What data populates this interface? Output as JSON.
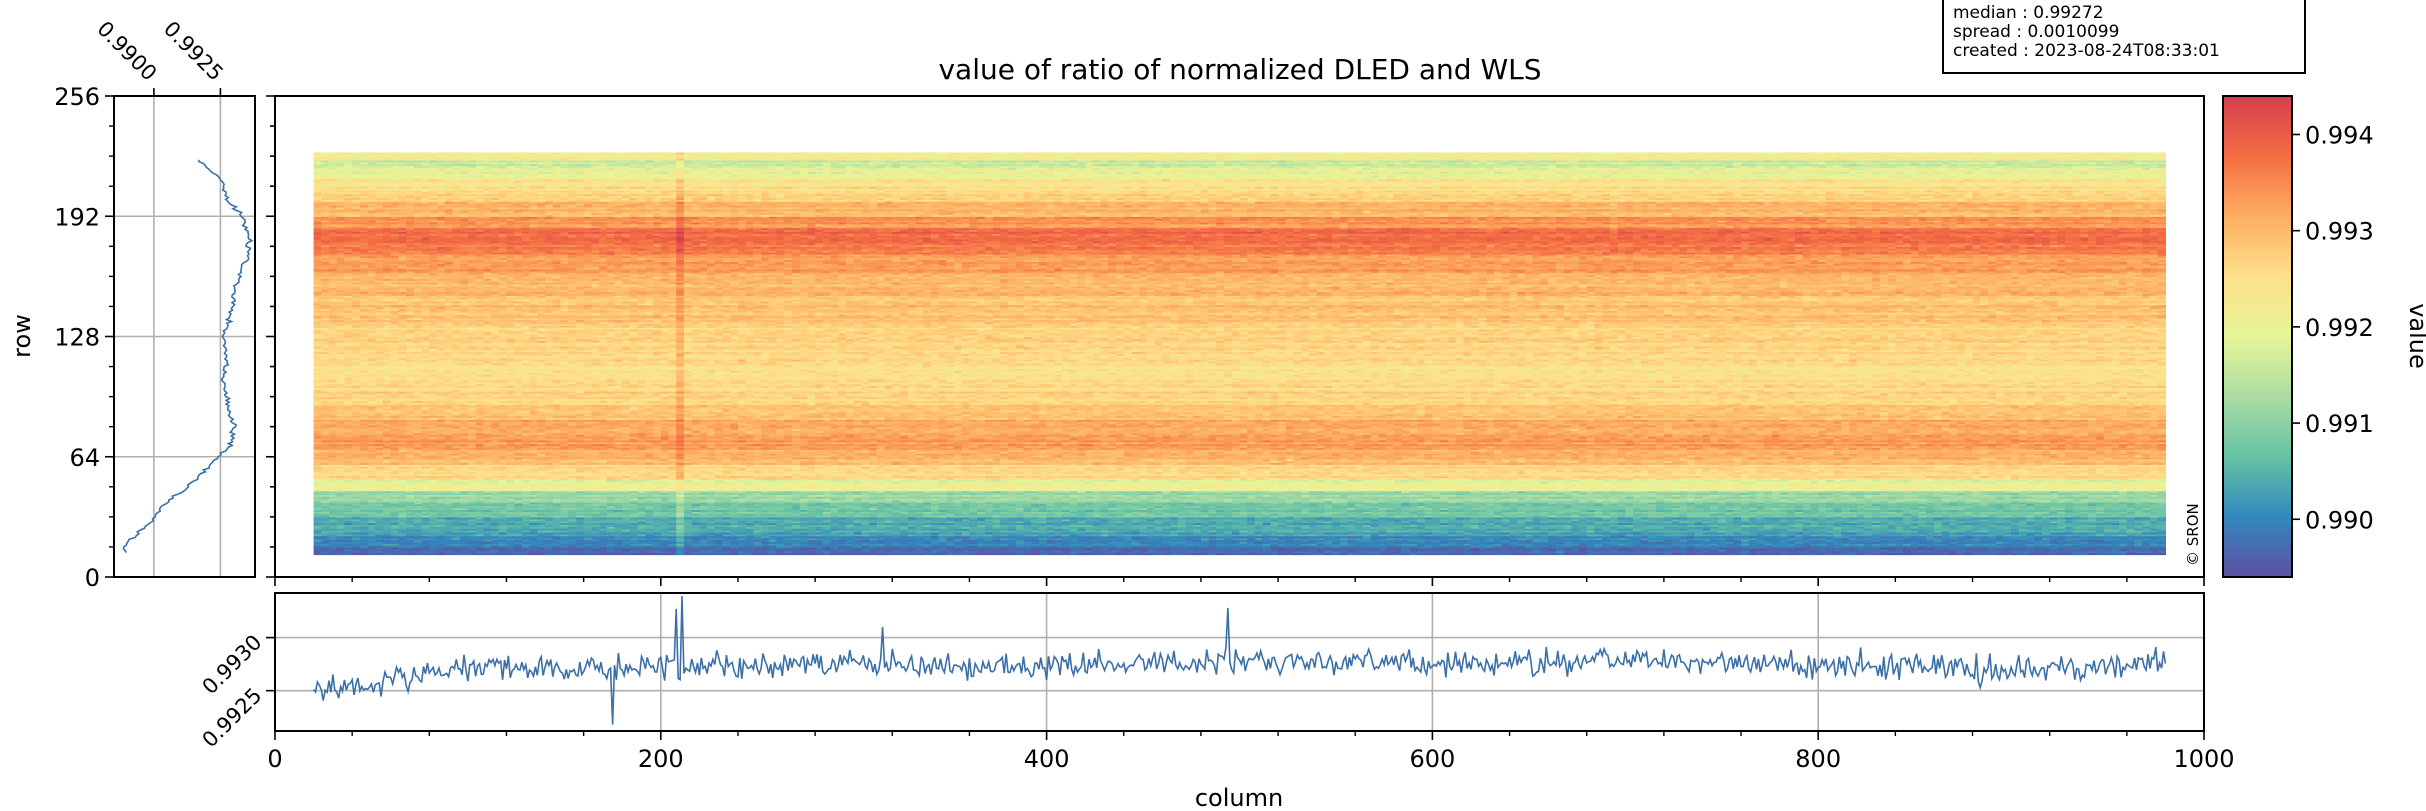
{
  "info_box": {
    "lines": [
      "median : 0.99272",
      "spread : 0.0010099",
      "created : 2023-08-24T08:33:01"
    ]
  },
  "watermark": "© SRON",
  "chart_data": {
    "type": "heatmap",
    "title": "value of ratio of normalized DLED and WLS",
    "xlabel": "column",
    "ylabel": "row",
    "xlim": [
      0,
      1000
    ],
    "ylim": [
      0,
      256
    ],
    "x_ticks": [
      "0",
      "200",
      "400",
      "600",
      "800",
      "1000"
    ],
    "y_ticks": [
      "0",
      "64",
      "128",
      "192",
      "256"
    ],
    "data_extent": {
      "columns": [
        20,
        980
      ],
      "rows": [
        12,
        226
      ]
    },
    "colorbar": {
      "label": "value",
      "range": [
        0.9894,
        0.9944
      ],
      "ticks": [
        "0.990",
        "0.991",
        "0.992",
        "0.993",
        "0.994"
      ],
      "colormap": "Spectral_r",
      "stops": [
        "#5e4fa2",
        "#3288bd",
        "#66c2a5",
        "#abdda4",
        "#e6f598",
        "#fee08b",
        "#fdae61",
        "#f46d43",
        "#d53e4f"
      ]
    },
    "row_profile_values": [
      {
        "row": 222,
        "value": 0.99165
      },
      {
        "row": 212,
        "value": 0.9925
      },
      {
        "row": 200,
        "value": 0.9928
      },
      {
        "row": 192,
        "value": 0.9933
      },
      {
        "row": 180,
        "value": 0.9936
      },
      {
        "row": 170,
        "value": 0.9935
      },
      {
        "row": 160,
        "value": 0.9932
      },
      {
        "row": 150,
        "value": 0.993
      },
      {
        "row": 140,
        "value": 0.9929
      },
      {
        "row": 128,
        "value": 0.9926
      },
      {
        "row": 116,
        "value": 0.9927
      },
      {
        "row": 105,
        "value": 0.9926
      },
      {
        "row": 90,
        "value": 0.9928
      },
      {
        "row": 80,
        "value": 0.993
      },
      {
        "row": 70,
        "value": 0.9929
      },
      {
        "row": 62,
        "value": 0.9923
      },
      {
        "row": 55,
        "value": 0.9918
      },
      {
        "row": 45,
        "value": 0.991
      },
      {
        "row": 38,
        "value": 0.9903
      },
      {
        "row": 30,
        "value": 0.99
      },
      {
        "row": 22,
        "value": 0.9893
      },
      {
        "row": 15,
        "value": 0.9888
      },
      {
        "row": 13,
        "value": 0.9891
      }
    ],
    "row_profile": {
      "ticks": [
        "0.9900",
        "0.9925"
      ],
      "xlim": [
        0.9885,
        0.9938
      ],
      "color": "#3b6fa8"
    },
    "column_profile": {
      "ticks": [
        "0.9925",
        "0.9930"
      ],
      "ylim": [
        0.99212,
        0.99342
      ],
      "color": "#3b6fa8",
      "noise": 0.00012,
      "values": [
        {
          "column": 20,
          "value": 0.9925
        },
        {
          "column": 60,
          "value": 0.99262
        },
        {
          "column": 100,
          "value": 0.99272
        },
        {
          "column": 150,
          "value": 0.9927
        },
        {
          "column": 200,
          "value": 0.99272
        },
        {
          "column": 250,
          "value": 0.99274
        },
        {
          "column": 300,
          "value": 0.99274
        },
        {
          "column": 350,
          "value": 0.99272
        },
        {
          "column": 400,
          "value": 0.99274
        },
        {
          "column": 450,
          "value": 0.99276
        },
        {
          "column": 500,
          "value": 0.99278
        },
        {
          "column": 550,
          "value": 0.99278
        },
        {
          "column": 600,
          "value": 0.99274
        },
        {
          "column": 650,
          "value": 0.99276
        },
        {
          "column": 700,
          "value": 0.99278
        },
        {
          "column": 750,
          "value": 0.99276
        },
        {
          "column": 800,
          "value": 0.99274
        },
        {
          "column": 850,
          "value": 0.99274
        },
        {
          "column": 900,
          "value": 0.99268
        },
        {
          "column": 950,
          "value": 0.99272
        },
        {
          "column": 980,
          "value": 0.9928
        }
      ],
      "spikes": [
        {
          "column": 175,
          "value": 0.99218
        },
        {
          "column": 208,
          "value": 0.99327
        },
        {
          "column": 211,
          "value": 0.99339
        },
        {
          "column": 494,
          "value": 0.99328
        },
        {
          "column": 315,
          "value": 0.9931
        }
      ]
    },
    "row_bands": [
      {
        "rows": [
          12,
          16
        ],
        "value": 0.9897
      },
      {
        "rows": [
          16,
          22
        ],
        "value": 0.99
      },
      {
        "rows": [
          22,
          32
        ],
        "value": 0.9904
      },
      {
        "rows": [
          32,
          40
        ],
        "value": 0.9908
      },
      {
        "rows": [
          40,
          46
        ],
        "value": 0.9912
      },
      {
        "rows": [
          46,
          52
        ],
        "value": 0.992
      },
      {
        "rows": [
          52,
          60
        ],
        "value": 0.9926
      },
      {
        "rows": [
          60,
          68
        ],
        "value": 0.993
      },
      {
        "rows": [
          68,
          76
        ],
        "value": 0.9933
      },
      {
        "rows": [
          76,
          84
        ],
        "value": 0.9931
      },
      {
        "rows": [
          84,
          92
        ],
        "value": 0.9929
      },
      {
        "rows": [
          92,
          100
        ],
        "value": 0.9927
      },
      {
        "rows": [
          100,
          112
        ],
        "value": 0.9925
      },
      {
        "rows": [
          112,
          124
        ],
        "value": 0.9926
      },
      {
        "rows": [
          124,
          136
        ],
        "value": 0.9927
      },
      {
        "rows": [
          136,
          150
        ],
        "value": 0.9929
      },
      {
        "rows": [
          150,
          162
        ],
        "value": 0.993
      },
      {
        "rows": [
          162,
          172
        ],
        "value": 0.9933
      },
      {
        "rows": [
          172,
          178
        ],
        "value": 0.9936
      },
      {
        "rows": [
          178,
          186
        ],
        "value": 0.9939
      },
      {
        "rows": [
          186,
          192
        ],
        "value": 0.9934
      },
      {
        "rows": [
          192,
          200
        ],
        "value": 0.993
      },
      {
        "rows": [
          200,
          206
        ],
        "value": 0.9927
      },
      {
        "rows": [
          206,
          212
        ],
        "value": 0.9924
      },
      {
        "rows": [
          212,
          218
        ],
        "value": 0.992
      },
      {
        "rows": [
          218,
          222
        ],
        "value": 0.9916
      },
      {
        "rows": [
          222,
          226
        ],
        "value": 0.9922
      }
    ],
    "bright_column": {
      "column": 208,
      "delta": 0.0004
    }
  }
}
